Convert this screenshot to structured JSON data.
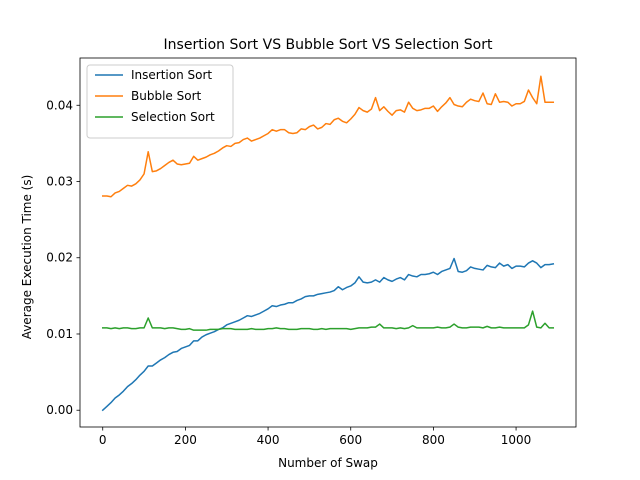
{
  "chart_data": {
    "type": "line",
    "title": "Insertion Sort VS Bubble Sort VS Selection Sort",
    "xlabel": "Number of Swap",
    "ylabel": "Average Execution Time (s)",
    "xlim": [
      -55,
      1145
    ],
    "ylim": [
      -0.0022,
      0.0462
    ],
    "xticks": [
      0,
      200,
      400,
      600,
      800,
      1000
    ],
    "yticks": [
      0.0,
      0.01,
      0.02,
      0.03,
      0.04
    ],
    "xtick_labels": [
      "0",
      "200",
      "400",
      "600",
      "800",
      "1000"
    ],
    "ytick_labels": [
      "0.00",
      "0.01",
      "0.02",
      "0.03",
      "0.04"
    ],
    "grid": false,
    "legend": "upper-left",
    "x": [
      0,
      10,
      20,
      30,
      40,
      50,
      60,
      70,
      80,
      90,
      100,
      110,
      120,
      130,
      140,
      150,
      160,
      170,
      180,
      190,
      200,
      210,
      220,
      230,
      240,
      250,
      260,
      270,
      280,
      290,
      300,
      310,
      320,
      330,
      340,
      350,
      360,
      370,
      380,
      390,
      400,
      410,
      420,
      430,
      440,
      450,
      460,
      470,
      480,
      490,
      500,
      510,
      520,
      530,
      540,
      550,
      560,
      570,
      580,
      590,
      600,
      610,
      620,
      630,
      640,
      650,
      660,
      670,
      680,
      690,
      700,
      710,
      720,
      730,
      740,
      750,
      760,
      770,
      780,
      790,
      800,
      810,
      820,
      830,
      840,
      850,
      860,
      870,
      880,
      890,
      900,
      910,
      920,
      930,
      940,
      950,
      960,
      970,
      980,
      990,
      1000,
      1010,
      1020,
      1030,
      1040,
      1050,
      1060,
      1070,
      1080,
      1090
    ],
    "series": [
      {
        "name": "Insertion Sort",
        "color": "#1f77b4",
        "values": [
          0.0,
          0.0005,
          0.001,
          0.0016,
          0.002,
          0.0025,
          0.0031,
          0.0035,
          0.004,
          0.0046,
          0.0051,
          0.0058,
          0.0058,
          0.0062,
          0.0066,
          0.0069,
          0.0073,
          0.0076,
          0.0077,
          0.0081,
          0.0083,
          0.0085,
          0.0091,
          0.0091,
          0.0096,
          0.0099,
          0.0101,
          0.0103,
          0.0106,
          0.0108,
          0.0112,
          0.0114,
          0.0116,
          0.0118,
          0.0121,
          0.0124,
          0.0123,
          0.0125,
          0.0127,
          0.013,
          0.0133,
          0.0137,
          0.0136,
          0.0138,
          0.0139,
          0.0141,
          0.0141,
          0.0144,
          0.0146,
          0.0149,
          0.015,
          0.015,
          0.0152,
          0.0153,
          0.0154,
          0.0155,
          0.0157,
          0.0162,
          0.0158,
          0.0161,
          0.0163,
          0.0167,
          0.0175,
          0.0168,
          0.0167,
          0.0168,
          0.0171,
          0.0168,
          0.0174,
          0.0171,
          0.0169,
          0.0172,
          0.0174,
          0.0171,
          0.0178,
          0.0176,
          0.0175,
          0.0178,
          0.0178,
          0.0179,
          0.0181,
          0.0178,
          0.0182,
          0.0184,
          0.0186,
          0.0199,
          0.0182,
          0.0181,
          0.0183,
          0.0188,
          0.0186,
          0.0185,
          0.0184,
          0.019,
          0.0188,
          0.0187,
          0.0193,
          0.0189,
          0.0191,
          0.0186,
          0.0189,
          0.0189,
          0.0188,
          0.0193,
          0.0196,
          0.0193,
          0.0187,
          0.0191,
          0.0191,
          0.0192
        ]
      },
      {
        "name": "Bubble Sort",
        "color": "#ff7f0e",
        "values": [
          0.0281,
          0.0281,
          0.028,
          0.0285,
          0.0287,
          0.0291,
          0.0295,
          0.0294,
          0.0297,
          0.0302,
          0.031,
          0.0339,
          0.0313,
          0.0314,
          0.0317,
          0.0321,
          0.0325,
          0.0328,
          0.0323,
          0.0322,
          0.0323,
          0.0324,
          0.0333,
          0.0328,
          0.033,
          0.0332,
          0.0335,
          0.0337,
          0.034,
          0.0344,
          0.0347,
          0.0346,
          0.035,
          0.0351,
          0.0355,
          0.0357,
          0.0353,
          0.0355,
          0.0357,
          0.036,
          0.0363,
          0.0368,
          0.0366,
          0.0368,
          0.0368,
          0.0364,
          0.0363,
          0.0364,
          0.0369,
          0.0368,
          0.0372,
          0.0374,
          0.0369,
          0.0371,
          0.0376,
          0.0375,
          0.0381,
          0.0383,
          0.0379,
          0.0377,
          0.0382,
          0.0388,
          0.0397,
          0.0393,
          0.0391,
          0.0395,
          0.041,
          0.0393,
          0.0398,
          0.0392,
          0.0387,
          0.0393,
          0.0394,
          0.0391,
          0.0404,
          0.0396,
          0.0393,
          0.0394,
          0.0396,
          0.0396,
          0.0399,
          0.0392,
          0.0398,
          0.0403,
          0.041,
          0.0401,
          0.0399,
          0.0398,
          0.0404,
          0.0408,
          0.0406,
          0.0405,
          0.0416,
          0.0402,
          0.0401,
          0.0415,
          0.0404,
          0.0405,
          0.0404,
          0.0399,
          0.0402,
          0.0402,
          0.0405,
          0.042,
          0.041,
          0.0402,
          0.0438,
          0.0404,
          0.0404,
          0.0404
        ]
      },
      {
        "name": "Selection Sort",
        "color": "#2ca02c",
        "values": [
          0.0108,
          0.0108,
          0.0107,
          0.0108,
          0.0107,
          0.0108,
          0.0108,
          0.0107,
          0.0107,
          0.0108,
          0.0108,
          0.0121,
          0.0108,
          0.0108,
          0.0108,
          0.0107,
          0.0108,
          0.0108,
          0.0107,
          0.0106,
          0.0106,
          0.0107,
          0.0105,
          0.0105,
          0.0105,
          0.0105,
          0.0106,
          0.0106,
          0.0106,
          0.0107,
          0.0107,
          0.0107,
          0.0106,
          0.0106,
          0.0106,
          0.0106,
          0.0107,
          0.0106,
          0.0106,
          0.0106,
          0.0107,
          0.0107,
          0.0108,
          0.0107,
          0.0107,
          0.0106,
          0.0106,
          0.0106,
          0.0107,
          0.0107,
          0.0107,
          0.0106,
          0.0106,
          0.0107,
          0.0106,
          0.0107,
          0.0107,
          0.0107,
          0.0107,
          0.0107,
          0.0106,
          0.0107,
          0.0108,
          0.0108,
          0.0108,
          0.0109,
          0.0109,
          0.0113,
          0.0108,
          0.0108,
          0.0108,
          0.0107,
          0.0108,
          0.0107,
          0.0108,
          0.0111,
          0.0108,
          0.0108,
          0.0108,
          0.0108,
          0.0108,
          0.0109,
          0.0108,
          0.0108,
          0.0109,
          0.0113,
          0.0109,
          0.0108,
          0.0108,
          0.0109,
          0.0109,
          0.0109,
          0.0108,
          0.011,
          0.0108,
          0.0108,
          0.0109,
          0.0108,
          0.0108,
          0.0108,
          0.0108,
          0.0108,
          0.0108,
          0.0112,
          0.013,
          0.0109,
          0.0108,
          0.0114,
          0.0108,
          0.0108
        ]
      }
    ]
  }
}
